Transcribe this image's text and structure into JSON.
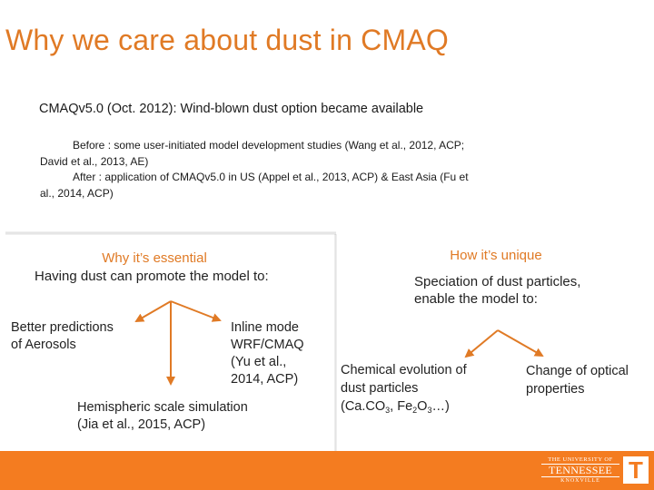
{
  "slide": {
    "title": "Why we care about dust in CMAQ",
    "subtitle": "CMAQv5.0 (Oct. 2012): Wind-blown dust option became available",
    "before_line1": "Before : some user-initiated model development studies (Wang et al., 2012, ACP;",
    "before_line2": "David et al., 2013, AE)",
    "after_line1": "After   : application of CMAQv5.0 in US (Appel et al., 2013, ACP) & East Asia (Fu et",
    "after_line2": "al., 2014, ACP)"
  },
  "left": {
    "heading": "Why it’s essential",
    "intro": "Having dust can promote the model to:",
    "item1": [
      "Better predictions",
      "of Aerosols"
    ],
    "item2": [
      "Inline mode",
      "WRF/CMAQ",
      "(Yu et al.,",
      "2014, ACP)"
    ],
    "item3": [
      "Hemispheric scale simulation",
      "(Jia et al., 2015,  ACP)"
    ]
  },
  "right": {
    "heading": "How it’s unique",
    "intro": [
      "Speciation of dust particles,",
      "enable the model to:"
    ],
    "item1": [
      "Chemical evolution of",
      "dust particles"
    ],
    "item1_species": {
      "caco": "(Ca.CO",
      "caco_sub": "3",
      "fe": ", Fe",
      "fe_sub1": "2",
      "o": "O",
      "fe_sub2": "3",
      "tail": "…)"
    },
    "item2": [
      "Change of optical",
      "properties"
    ]
  },
  "footer": {
    "logo_text": [
      "THE UNIVERSITY OF",
      "TENNESSEE",
      "KNOXVILLE"
    ],
    "logo_letter": "T"
  },
  "colors": {
    "accent": "#e07a25",
    "footer": "#f47c20",
    "arrow": "#e07a25"
  }
}
